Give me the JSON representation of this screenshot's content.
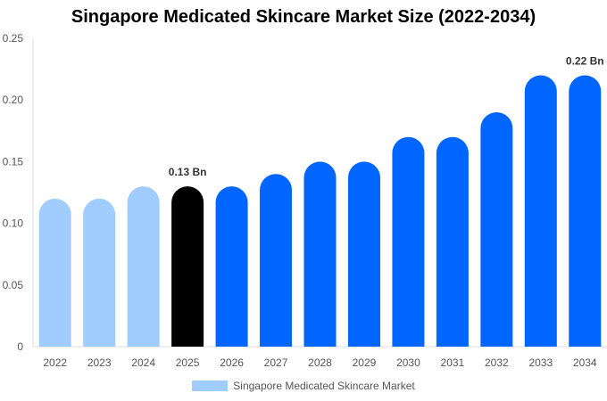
{
  "chart_data": {
    "type": "bar",
    "title": "Singapore Medicated Skincare Market Size (2022-2034)",
    "categories": [
      "2022",
      "2023",
      "2024",
      "2025",
      "2026",
      "2027",
      "2028",
      "2029",
      "2030",
      "2031",
      "2032",
      "2033",
      "2034"
    ],
    "series": [
      {
        "name": "Singapore Medicated Skincare Market",
        "values": [
          0.12,
          0.12,
          0.13,
          0.13,
          0.13,
          0.14,
          0.15,
          0.15,
          0.17,
          0.17,
          0.19,
          0.22,
          0.22
        ]
      }
    ],
    "ylim": [
      0,
      0.25
    ],
    "yticks": [
      "0",
      "0.05",
      "0.10",
      "0.15",
      "0.20",
      "0.25"
    ],
    "data_labels": {
      "2025": "0.13 Bn",
      "2034": "0.22 Bn"
    },
    "bar_colors": {
      "historical": "#a0cdfd",
      "current": "#000000",
      "forecast": "#0066ff"
    },
    "bar_color_by_category": [
      "historical",
      "historical",
      "historical",
      "current",
      "forecast",
      "forecast",
      "forecast",
      "forecast",
      "forecast",
      "forecast",
      "forecast",
      "forecast",
      "forecast"
    ],
    "grid": false,
    "legend": "bottom"
  }
}
